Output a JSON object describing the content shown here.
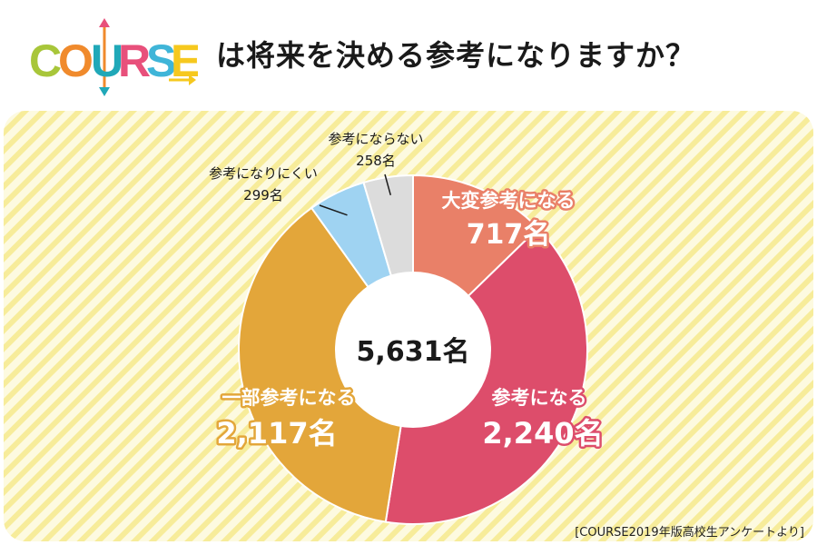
{
  "logo": {
    "text": "COURSE"
  },
  "title": "は将来を決める参考になりますか？",
  "source": "[COURSE2019年版高校生アンケートより]",
  "chart_data": {
    "type": "pie",
    "donut": true,
    "total_label": "5,631名",
    "slices": [
      {
        "label": "大変参考になる",
        "value": 717,
        "value_label": "717名",
        "color": "#e98068"
      },
      {
        "label": "参考になる",
        "value": 2240,
        "value_label": "2,240名",
        "color": "#dd4d6b"
      },
      {
        "label": "一部参考になる",
        "value": 2117,
        "value_label": "2,117名",
        "color": "#e3a63a"
      },
      {
        "label": "参考になりにくい",
        "value": 299,
        "value_label": "299名",
        "color": "#9fd3f2"
      },
      {
        "label": "参考にならない",
        "value": 258,
        "value_label": "258名",
        "color": "#dcdcdc"
      }
    ]
  }
}
